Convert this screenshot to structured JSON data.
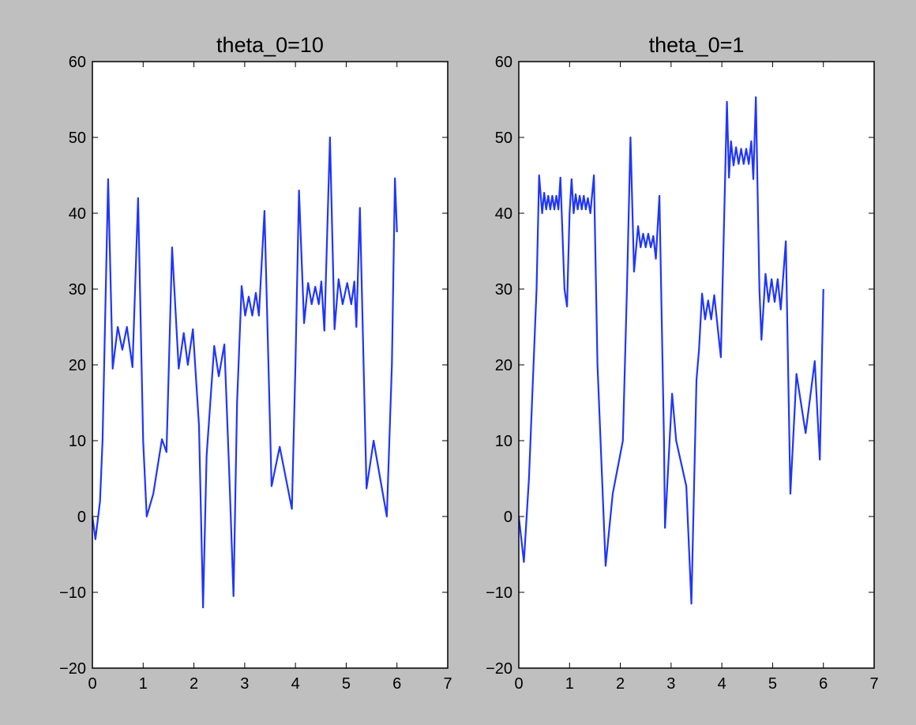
{
  "chart_data": [
    {
      "type": "line",
      "title": "theta_0=10",
      "color": "#1f35ff",
      "x": [
        0,
        0.06,
        0.15,
        0.2,
        0.31,
        0.4,
        0.5,
        0.59,
        0.68,
        0.79,
        0.9,
        1.0,
        1.07,
        1.2,
        1.37,
        1.46,
        1.57,
        1.7,
        1.8,
        1.88,
        1.98,
        2.1,
        2.18,
        2.25,
        2.4,
        2.49,
        2.6,
        2.7,
        2.78,
        2.85,
        2.94,
        3.01,
        3.08,
        3.15,
        3.22,
        3.28,
        3.39,
        3.53,
        3.69,
        3.93,
        4.0,
        4.07,
        4.17,
        4.25,
        4.32,
        4.39,
        4.46,
        4.51,
        4.57,
        4.68,
        4.77,
        4.85,
        4.93,
        5.02,
        5.1,
        5.16,
        5.2,
        5.27,
        5.4,
        5.54,
        5.8,
        5.9,
        5.96,
        6.0
      ],
      "values": [
        0,
        -3,
        2,
        10,
        44.5,
        19.5,
        25,
        22,
        25,
        19.7,
        42,
        10,
        0,
        3,
        10.2,
        8.5,
        35.5,
        19.5,
        24.2,
        20,
        24.7,
        12,
        -12,
        8,
        22.5,
        18.5,
        22.7,
        5,
        -10.5,
        15,
        30.4,
        26.5,
        29,
        26.5,
        29.5,
        26.5,
        40.3,
        4,
        9.2,
        1,
        20,
        43,
        25.5,
        30.8,
        28,
        30.3,
        28,
        31,
        24.5,
        50,
        24.7,
        31.3,
        28,
        30.8,
        28,
        31,
        25,
        40.7,
        3.7,
        10,
        0,
        20,
        44.6,
        37.5
      ],
      "xlim": [
        0,
        7
      ],
      "xticks": [
        0,
        1,
        2,
        3,
        4,
        5,
        6,
        7
      ],
      "ylim": [
        -20,
        60
      ],
      "yticks": [
        {
          "value": -20,
          "label": "−20"
        },
        {
          "value": -10,
          "label": "−10"
        },
        0,
        10,
        20,
        30,
        40,
        50,
        60
      ]
    },
    {
      "type": "line",
      "title": "theta_0=1",
      "color": "#1f35ff",
      "x": [
        0,
        0.1,
        0.2,
        0.35,
        0.4,
        0.46,
        0.5,
        0.54,
        0.58,
        0.62,
        0.66,
        0.7,
        0.74,
        0.78,
        0.82,
        0.9,
        0.95,
        1.0,
        1.04,
        1.08,
        1.12,
        1.16,
        1.2,
        1.24,
        1.28,
        1.32,
        1.36,
        1.41,
        1.48,
        1.55,
        1.71,
        1.85,
        2.05,
        2.13,
        2.2,
        2.27,
        2.35,
        2.4,
        2.45,
        2.5,
        2.55,
        2.6,
        2.65,
        2.7,
        2.77,
        2.86,
        2.88,
        3.02,
        3.1,
        3.3,
        3.4,
        3.5,
        3.55,
        3.61,
        3.67,
        3.73,
        3.79,
        3.85,
        3.98,
        4.1,
        4.14,
        4.18,
        4.23,
        4.28,
        4.33,
        4.38,
        4.43,
        4.48,
        4.53,
        4.58,
        4.62,
        4.67,
        4.74,
        4.78,
        4.86,
        4.92,
        4.98,
        5.04,
        5.1,
        5.16,
        5.26,
        5.35,
        5.47,
        5.65,
        5.83,
        5.93,
        6.0
      ],
      "values": [
        0,
        -6,
        5,
        30,
        45,
        40,
        42.7,
        40.5,
        42.3,
        40.5,
        42.3,
        40.5,
        42.3,
        40.5,
        44.7,
        30,
        27.7,
        40,
        44.5,
        40,
        42.5,
        40.5,
        42.3,
        40.5,
        42.3,
        40.5,
        42,
        40,
        45,
        20,
        -6.5,
        3,
        10,
        30,
        50,
        32.3,
        38.3,
        35.5,
        37.3,
        35.5,
        37.3,
        35.5,
        37,
        34,
        42.3,
        10,
        -1.5,
        16.2,
        10,
        4,
        -11.5,
        18,
        22,
        29.4,
        26,
        28.5,
        26,
        29.2,
        21,
        54.7,
        44.7,
        49.5,
        46.3,
        48.7,
        46.5,
        48.5,
        46.5,
        48.5,
        46.5,
        49.5,
        44.5,
        55.3,
        30,
        23.3,
        32,
        28.3,
        31.3,
        28.3,
        31.3,
        27.3,
        36.3,
        3,
        18.8,
        11,
        20.5,
        7.5,
        30
      ],
      "xlim": [
        0,
        7
      ],
      "xticks": [
        0,
        1,
        2,
        3,
        4,
        5,
        6,
        7
      ],
      "ylim": [
        -20,
        60
      ],
      "yticks": [
        {
          "value": -20,
          "label": "−20"
        },
        {
          "value": -10,
          "label": "−10"
        },
        0,
        10,
        20,
        30,
        40,
        50,
        60
      ]
    }
  ]
}
